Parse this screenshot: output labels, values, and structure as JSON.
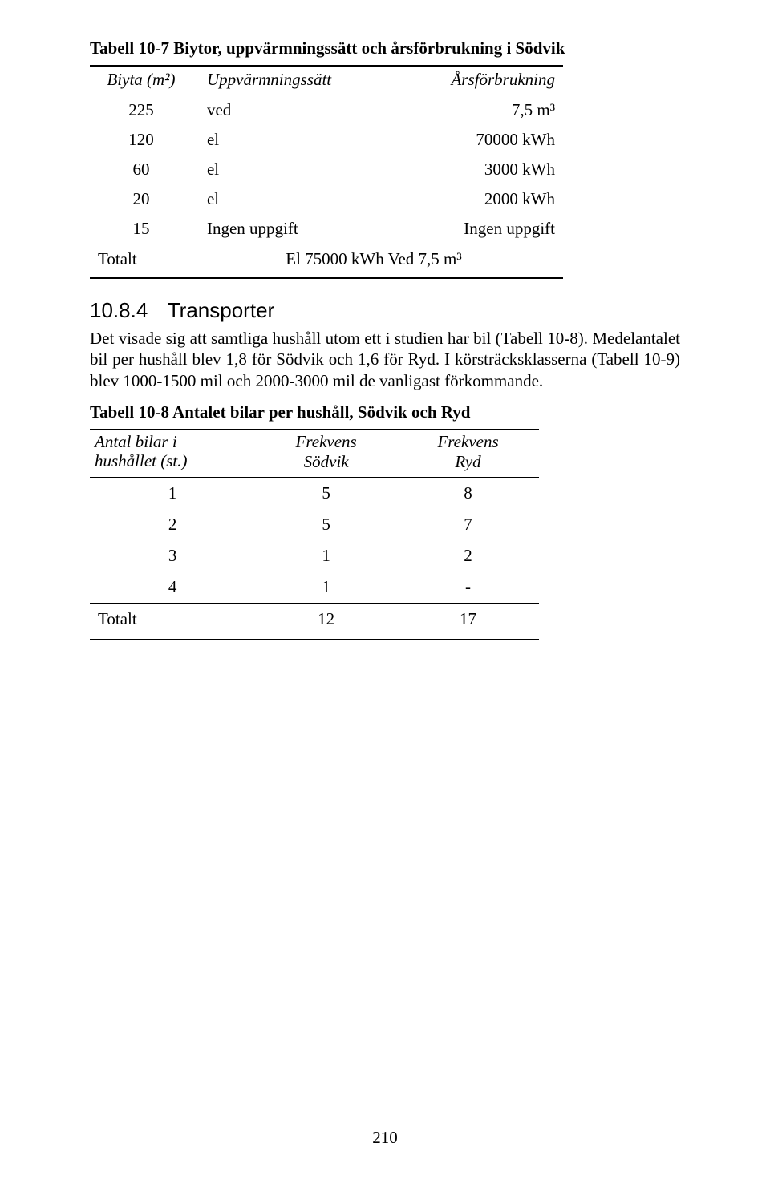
{
  "table7": {
    "caption": "Tabell 10-7 Biytor, uppvärmningssätt och årsförbrukning i Södvik",
    "columns": [
      "Biyta (m²)",
      "Uppvärmningssätt",
      "Årsförbrukning"
    ],
    "rows": [
      [
        "225",
        "ved",
        "7,5 m³"
      ],
      [
        "120",
        "el",
        "70000 kWh"
      ],
      [
        "60",
        "el",
        "3000 kWh"
      ],
      [
        "20",
        "el",
        "2000 kWh"
      ],
      [
        "15",
        "Ingen uppgift",
        "Ingen uppgift"
      ]
    ],
    "total_label": "Totalt",
    "total_value": "El 75000 kWh Ved 7,5 m³"
  },
  "section": {
    "number": "10.8.4",
    "title": "Transporter",
    "body": "Det visade sig att samtliga hushåll utom ett i studien har bil (Tabell 10-8). Medelantalet bil per hushåll blev 1,8 för Södvik och 1,6 för Ryd. I körsträcksklasserna (Tabell 10-9) blev 1000-1500 mil och 2000-3000 mil de vanligast förkommande."
  },
  "table8": {
    "caption": "Tabell 10-8 Antalet bilar per hushåll, Södvik och Ryd",
    "col1_line1": "Antal bilar i",
    "col1_line2": "hushållet (st.)",
    "col2_line1": "Frekvens",
    "col2_line2": "Södvik",
    "col3_line1": "Frekvens",
    "col3_line2": "Ryd",
    "rows": [
      [
        "1",
        "5",
        "8"
      ],
      [
        "2",
        "5",
        "7"
      ],
      [
        "3",
        "1",
        "2"
      ],
      [
        "4",
        "1",
        "-"
      ]
    ],
    "total_label": "Totalt",
    "total_c2": "12",
    "total_c3": "17"
  },
  "page_number": "210"
}
